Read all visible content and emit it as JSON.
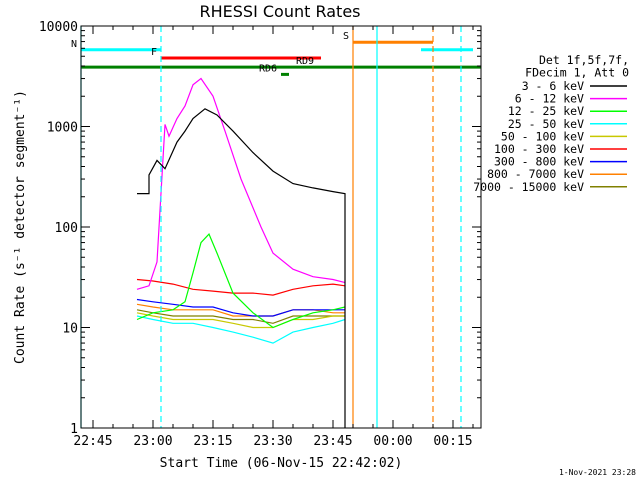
{
  "chart_data": {
    "type": "line",
    "title": "RHESSI Count Rates",
    "xlabel": "Start Time (06-Nov-15 22:42:02)",
    "ylabel": "Count Rate (s⁻¹ detector segment⁻¹)",
    "y_scale": "log",
    "ylim": [
      1,
      10000
    ],
    "xlim": [
      "22:42",
      "00:22"
    ],
    "x_tick_labels": [
      "22:45",
      "23:00",
      "23:15",
      "23:30",
      "23:45",
      "00:00",
      "00:15"
    ],
    "y_tick_labels": [
      "1",
      "10",
      "100",
      "1000",
      "10000"
    ],
    "legend": {
      "placement": "right",
      "header": [
        "Det 1f,5f,7f,",
        "FDecim 1, Att 0"
      ],
      "entries": [
        {
          "label": "3 - 6 keV",
          "color": "#000000"
        },
        {
          "label": "6 - 12 keV",
          "color": "#ff00ff"
        },
        {
          "label": "12 - 25 keV",
          "color": "#00ff00"
        },
        {
          "label": "25 - 50 keV",
          "color": "#00ffff"
        },
        {
          "label": "50 - 100 keV",
          "color": "#c8c800"
        },
        {
          "label": "100 - 300 keV",
          "color": "#ff0000"
        },
        {
          "label": "300 - 800 keV",
          "color": "#0000ff"
        },
        {
          "label": "800 - 7000 keV",
          "color": "#ff8000"
        },
        {
          "label": "7000 - 15000 keV",
          "color": "#808000"
        }
      ]
    },
    "series": [
      {
        "name": "3 - 6 keV",
        "color": "#000000",
        "x": [
          "22:56",
          "22:59",
          "22:59",
          "23:01",
          "23:03",
          "23:06",
          "23:08",
          "23:10",
          "23:13",
          "23:16",
          "23:20",
          "23:25",
          "23:30",
          "23:35",
          "23:40",
          "23:45",
          "23:48",
          "23:48"
        ],
        "y": [
          215,
          215,
          330,
          460,
          380,
          700,
          900,
          1200,
          1500,
          1300,
          900,
          550,
          360,
          270,
          245,
          225,
          215,
          1
        ]
      },
      {
        "name": "6 - 12 keV",
        "color": "#ff00ff",
        "x": [
          "22:56",
          "22:59",
          "23:01",
          "23:03",
          "23:04",
          "23:06",
          "23:08",
          "23:10",
          "23:12",
          "23:15",
          "23:18",
          "23:22",
          "23:27",
          "23:30",
          "23:35",
          "23:40",
          "23:45",
          "23:48"
        ],
        "y": [
          24,
          26,
          45,
          1050,
          800,
          1200,
          1600,
          2600,
          3000,
          2000,
          900,
          300,
          100,
          55,
          38,
          32,
          30,
          28
        ]
      },
      {
        "name": "12 - 25 keV",
        "color": "#00ff00",
        "x": [
          "22:56",
          "23:00",
          "23:05",
          "23:08",
          "23:10",
          "23:12",
          "23:14",
          "23:16",
          "23:20",
          "23:25",
          "23:30",
          "23:35",
          "23:40",
          "23:45",
          "23:48"
        ],
        "y": [
          12,
          14,
          15,
          18,
          35,
          70,
          85,
          55,
          22,
          14,
          10,
          12,
          14,
          15,
          16
        ]
      },
      {
        "name": "25 - 50 keV",
        "color": "#00ffff",
        "x": [
          "22:56",
          "23:00",
          "23:05",
          "23:10",
          "23:15",
          "23:20",
          "23:25",
          "23:30",
          "23:35",
          "23:40",
          "23:45",
          "23:48"
        ],
        "y": [
          13,
          12,
          11,
          11,
          10,
          9,
          8,
          7,
          9,
          10,
          11,
          12
        ]
      },
      {
        "name": "50 - 100 keV",
        "color": "#c8c800",
        "x": [
          "22:56",
          "23:00",
          "23:05",
          "23:10",
          "23:15",
          "23:20",
          "23:25",
          "23:30",
          "23:35",
          "23:40",
          "23:45",
          "23:48"
        ],
        "y": [
          14,
          13,
          12,
          12,
          12,
          11,
          10,
          10,
          12,
          12,
          13,
          13
        ]
      },
      {
        "name": "100 - 300 keV",
        "color": "#ff0000",
        "x": [
          "22:56",
          "23:00",
          "23:05",
          "23:10",
          "23:15",
          "23:20",
          "23:25",
          "23:30",
          "23:35",
          "23:40",
          "23:45",
          "23:48"
        ],
        "y": [
          30,
          29,
          27,
          24,
          23,
          22,
          22,
          21,
          24,
          26,
          27,
          26
        ]
      },
      {
        "name": "300 - 800 keV",
        "color": "#0000ff",
        "x": [
          "22:56",
          "23:00",
          "23:05",
          "23:10",
          "23:15",
          "23:20",
          "23:25",
          "23:30",
          "23:35",
          "23:40",
          "23:45",
          "23:48"
        ],
        "y": [
          19,
          18,
          17,
          16,
          16,
          14,
          13,
          13,
          15,
          15,
          15,
          15
        ]
      },
      {
        "name": "800 - 7000 keV",
        "color": "#ff8000",
        "x": [
          "22:56",
          "23:00",
          "23:05",
          "23:10",
          "23:15",
          "23:20",
          "23:25",
          "23:30",
          "23:35",
          "23:40",
          "23:45",
          "23:48"
        ],
        "y": [
          17,
          16,
          15,
          15,
          15,
          13,
          13,
          13,
          15,
          15,
          14,
          14
        ]
      },
      {
        "name": "7000 - 15000 keV",
        "color": "#808000",
        "x": [
          "22:56",
          "23:00",
          "23:05",
          "23:10",
          "23:15",
          "23:20",
          "23:25",
          "23:30",
          "23:35",
          "23:40",
          "23:45",
          "23:48"
        ],
        "y": [
          15,
          14,
          13,
          13,
          13,
          12,
          12,
          11,
          13,
          13,
          13,
          13
        ]
      }
    ],
    "flag_bars": [
      {
        "label": "N",
        "color": "#00ffff",
        "segments": [
          [
            "22:42",
            "23:02"
          ],
          [
            "00:07",
            "00:20"
          ]
        ],
        "y_level": 5800
      },
      {
        "label": "F",
        "color": "#ff0000",
        "segments": [
          [
            "23:02",
            "23:42"
          ]
        ],
        "y_level": 4800
      },
      {
        "label": "S",
        "color": "#ff8000",
        "segments": [
          [
            "23:50",
            "00:10"
          ]
        ],
        "y_level": 6900
      },
      {
        "label": "RD9",
        "color": "#008000",
        "segments": [
          [
            "22:42",
            "00:22"
          ]
        ],
        "y_level": 3900
      },
      {
        "label": "RD6",
        "color": "#008000",
        "segments": [
          [
            "23:32",
            "23:34"
          ]
        ],
        "y_level": 3300
      }
    ],
    "vertical_markers": [
      {
        "x": "22:42",
        "color": "#00ffff",
        "style": "solid"
      },
      {
        "x": "23:02",
        "color": "#00ffff",
        "style": "dashed"
      },
      {
        "x": "23:50",
        "color": "#ff8000",
        "style": "solid"
      },
      {
        "x": "23:56",
        "color": "#00ffff",
        "style": "solid"
      },
      {
        "x": "00:10",
        "color": "#ff8000",
        "style": "dashed"
      },
      {
        "x": "00:17",
        "color": "#00ffff",
        "style": "dashed"
      }
    ],
    "grid": false
  },
  "timestamp": "1-Nov-2021 23:28"
}
